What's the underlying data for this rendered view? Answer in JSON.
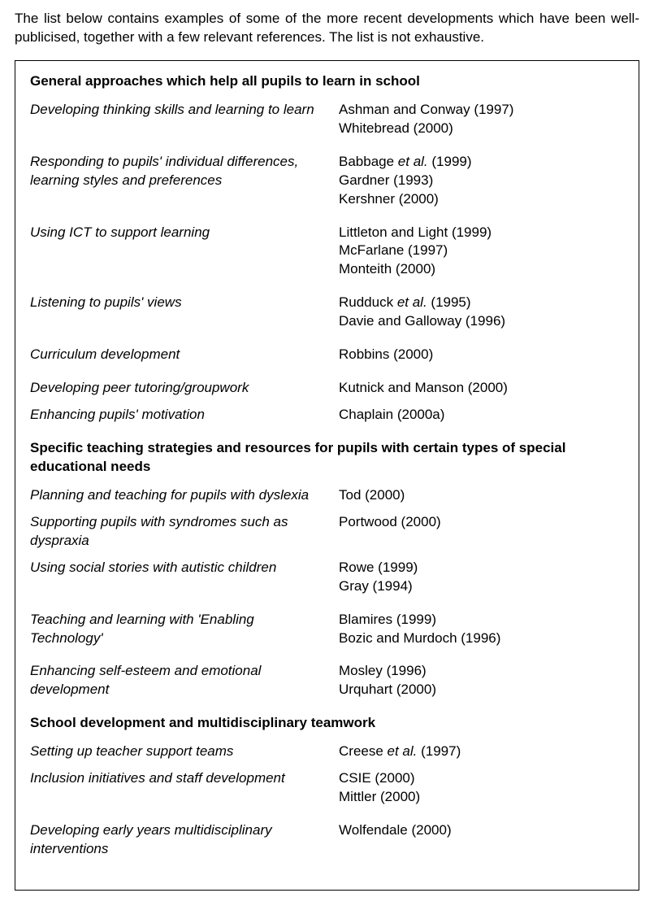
{
  "intro": "The list below contains examples of some of the more recent developments which have been well-publicised, together with a few relevant references. The list is not exhaustive.",
  "sections": [
    {
      "title": "General approaches which help all pupils to learn in school",
      "items": [
        {
          "topic": "Developing thinking skills and learning to learn",
          "refs": [
            "Ashman and Conway (1997)",
            "Whitebread (2000)"
          ],
          "tight": false
        },
        {
          "topic": "Responding to pupils' individual differences, learning styles and preferences",
          "refs_html": [
            "Babbage <span class=\"etal\">et al.</span> (1999)",
            "Gardner (1993)",
            "Kershner (2000)"
          ],
          "tight": false
        },
        {
          "topic": "Using ICT to support learning",
          "refs": [
            "Littleton and Light (1999)",
            "McFarlane (1997)",
            "Monteith (2000)"
          ],
          "tight": false
        },
        {
          "topic": "Listening to pupils' views",
          "refs_html": [
            "Rudduck <span class=\"etal\">et al.</span> (1995)",
            "Davie and Galloway (1996)"
          ],
          "tight": false
        },
        {
          "topic": "Curriculum development",
          "refs": [
            "Robbins (2000)"
          ],
          "tight": false
        },
        {
          "topic": "Developing peer tutoring/groupwork",
          "refs": [
            "Kutnick and Manson (2000)"
          ],
          "tight": true
        },
        {
          "topic": "Enhancing pupils' motivation",
          "refs": [
            "Chaplain (2000a)"
          ],
          "tight": false
        }
      ]
    },
    {
      "title": "Specific teaching strategies and resources for pupils with certain types of special educational needs",
      "items": [
        {
          "topic": "Planning and teaching for pupils with dyslexia",
          "refs": [
            "Tod (2000)"
          ],
          "tight": true
        },
        {
          "topic": "Supporting pupils with syndromes such as dyspraxia",
          "refs": [
            "Portwood (2000)"
          ],
          "tight": true
        },
        {
          "topic": "Using social stories with autistic children",
          "refs": [
            "Rowe (1999)",
            "Gray (1994)"
          ],
          "tight": false
        },
        {
          "topic": "Teaching and learning with 'Enabling Technology'",
          "refs": [
            "Blamires (1999)",
            "Bozic and Murdoch (1996)"
          ],
          "tight": false
        },
        {
          "topic": "Enhancing self-esteem and emotional development",
          "refs": [
            "Mosley (1996)",
            "Urquhart (2000)"
          ],
          "tight": false
        }
      ]
    },
    {
      "title": "School development and multidisciplinary teamwork",
      "items": [
        {
          "topic": "Setting up teacher support teams",
          "refs_html": [
            "Creese <span class=\"etal\">et al.</span> (1997)"
          ],
          "tight": true
        },
        {
          "topic": "Inclusion initiatives and staff development",
          "refs": [
            "CSIE (2000)",
            "Mittler (2000)"
          ],
          "tight": false
        },
        {
          "topic": "Developing early years multidisciplinary interventions",
          "refs": [
            "Wolfendale (2000)"
          ],
          "tight": false
        }
      ]
    }
  ]
}
